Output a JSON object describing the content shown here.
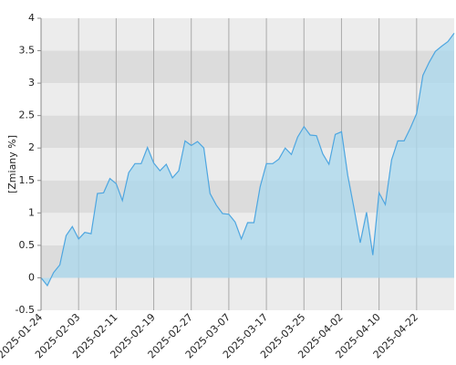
{
  "chart_data": {
    "type": "area",
    "y_label": "[Zmiany %]",
    "categories": [
      "2025-01-24",
      null,
      null,
      null,
      null,
      null,
      "2025-02-03",
      null,
      null,
      null,
      null,
      null,
      "2025-02-11",
      null,
      null,
      null,
      null,
      null,
      "2025-02-19",
      null,
      null,
      null,
      null,
      null,
      "2025-02-27",
      null,
      null,
      null,
      null,
      null,
      "2025-03-07",
      null,
      null,
      null,
      null,
      null,
      "2025-03-17",
      null,
      null,
      null,
      null,
      null,
      "2025-03-25",
      null,
      null,
      null,
      null,
      null,
      "2025-04-02",
      null,
      null,
      null,
      null,
      null,
      "2025-04-10",
      null,
      null,
      null,
      null,
      null,
      "2025-04-22",
      null,
      null,
      null,
      null,
      null,
      null
    ],
    "values": [
      0.0,
      -0.12,
      0.08,
      0.2,
      0.65,
      0.79,
      0.6,
      0.7,
      0.68,
      1.3,
      1.31,
      1.53,
      1.45,
      1.19,
      1.62,
      1.76,
      1.76,
      2.01,
      1.77,
      1.65,
      1.75,
      1.54,
      1.65,
      2.11,
      2.04,
      2.1,
      2.0,
      1.3,
      1.12,
      0.99,
      0.98,
      0.86,
      0.6,
      0.85,
      0.85,
      1.4,
      1.76,
      1.76,
      1.83,
      2.0,
      1.9,
      2.17,
      2.33,
      2.2,
      2.19,
      1.91,
      1.75,
      2.21,
      2.25,
      1.58,
      1.07,
      0.54,
      1.01,
      0.35,
      1.31,
      1.13,
      1.82,
      2.11,
      2.11,
      2.31,
      2.53,
      3.12,
      3.32,
      3.49,
      3.57,
      3.64,
      3.77
    ],
    "color": "#4ea6e0",
    "fill_color": "#a9d8ee",
    "ylim": [
      -0.5,
      4.0
    ],
    "yticks": [
      -0.5,
      0.0,
      0.5,
      1.0,
      1.5,
      2.0,
      2.5,
      3.0,
      3.5,
      4.0
    ],
    "band_colors": [
      "#ececec",
      "#dcdcdc"
    ],
    "grid": true
  }
}
